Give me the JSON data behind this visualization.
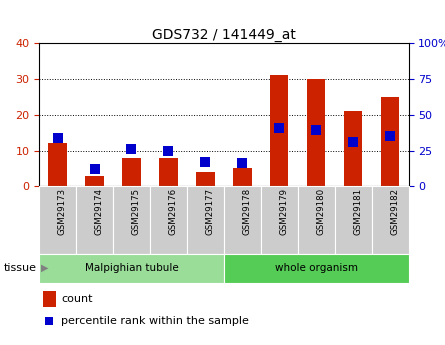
{
  "title": "GDS732 / 141449_at",
  "categories": [
    "GSM29173",
    "GSM29174",
    "GSM29175",
    "GSM29176",
    "GSM29177",
    "GSM29178",
    "GSM29179",
    "GSM29180",
    "GSM29181",
    "GSM29182"
  ],
  "count": [
    12,
    3,
    8,
    8,
    4,
    5,
    31,
    30,
    21,
    25
  ],
  "percentile": [
    34,
    12,
    26,
    25,
    17,
    16,
    41,
    39,
    31,
    35
  ],
  "left_ylim": [
    0,
    40
  ],
  "right_ylim": [
    0,
    100
  ],
  "left_yticks": [
    0,
    10,
    20,
    30,
    40
  ],
  "right_yticks": [
    0,
    25,
    50,
    75,
    100
  ],
  "right_yticklabels": [
    "0",
    "25",
    "50",
    "75",
    "100%"
  ],
  "bar_color": "#cc2200",
  "point_color": "#0000cc",
  "grid_color": "#000000",
  "xticklabel_bg": "#cccccc",
  "tissue_groups": [
    {
      "label": "Malpighian tubule",
      "indices": [
        0,
        1,
        2,
        3,
        4
      ],
      "color": "#99dd99"
    },
    {
      "label": "whole organism",
      "indices": [
        5,
        6,
        7,
        8,
        9
      ],
      "color": "#55cc55"
    }
  ],
  "tissue_label": "tissue",
  "legend_count_label": "count",
  "legend_pct_label": "percentile rank within the sample",
  "bar_width": 0.5,
  "point_size": 45,
  "title_fontsize": 10,
  "tick_fontsize": 8,
  "left_tick_color": "#cc2200",
  "right_tick_color": "#0000cc"
}
